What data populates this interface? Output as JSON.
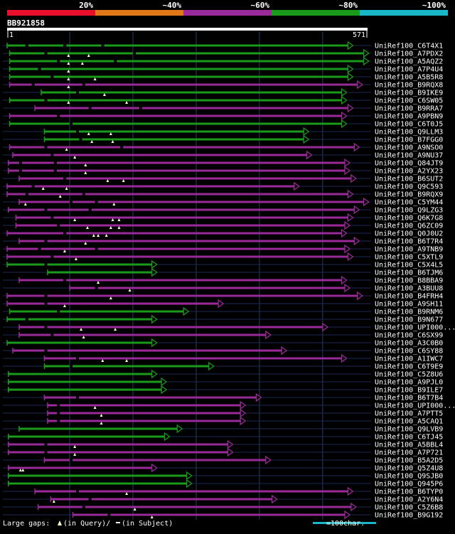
{
  "chart_data": {
    "type": "alignment-overview",
    "query_id": "BB921858",
    "query_length": 571,
    "axis": {
      "start_label": "1",
      "end_label": "571"
    },
    "identity_scale": {
      "labels": [
        "20%",
        "~40%",
        "~60%",
        "~80%",
        "~100%"
      ],
      "colors": [
        "#e8102a",
        "#e07818",
        "#9a2a9a",
        "#1a9a1a",
        "#18b8c8"
      ]
    },
    "gridlines_at": [
      100,
      200,
      300,
      400,
      500
    ],
    "hits": [
      {
        "name": "UniRef100_C6T4X1",
        "start": 1,
        "end": 540,
        "color": "#1a9a1a",
        "query_gaps": [],
        "subject_gaps": [
          30,
          90,
          150
        ]
      },
      {
        "name": "UniRef100_A7PDX2",
        "start": 5,
        "end": 565,
        "color": "#1a9a1a",
        "query_gaps": [
          98,
          130
        ],
        "subject_gaps": [
          60,
          200
        ]
      },
      {
        "name": "UniRef100_A5AQZ2",
        "start": 5,
        "end": 565,
        "color": "#1a9a1a",
        "query_gaps": [
          98,
          120
        ],
        "subject_gaps": [
          80,
          170
        ]
      },
      {
        "name": "UniRef100_A7P4U4",
        "start": 5,
        "end": 540,
        "color": "#1a9a1a",
        "query_gaps": [
          98
        ],
        "subject_gaps": [
          50
        ]
      },
      {
        "name": "UniRef100_A5B5R8",
        "start": 5,
        "end": 540,
        "color": "#1a9a1a",
        "query_gaps": [
          98,
          140
        ],
        "subject_gaps": [
          70
        ]
      },
      {
        "name": "UniRef100_B9RQX8",
        "start": 5,
        "end": 555,
        "color": "#9a2a9a",
        "query_gaps": [
          98
        ],
        "subject_gaps": [
          40,
          120
        ]
      },
      {
        "name": "UniRef100_B9IKE9",
        "start": 55,
        "end": 530,
        "color": "#1a9a1a",
        "query_gaps": [
          155
        ],
        "subject_gaps": [
          110
        ]
      },
      {
        "name": "UniRef100_C6SW05",
        "start": 5,
        "end": 530,
        "color": "#1a9a1a",
        "query_gaps": [
          98,
          190
        ],
        "subject_gaps": [
          60
        ]
      },
      {
        "name": "UniRef100_B9RRA7",
        "start": 45,
        "end": 540,
        "color": "#9a2a9a",
        "query_gaps": [],
        "subject_gaps": [
          130,
          210
        ]
      },
      {
        "name": "UniRef100_A9PBN9",
        "start": 5,
        "end": 530,
        "color": "#9a2a9a",
        "query_gaps": [],
        "subject_gaps": [
          80
        ]
      },
      {
        "name": "UniRef100_C6T0J5",
        "start": 5,
        "end": 530,
        "color": "#1a9a1a",
        "query_gaps": [],
        "subject_gaps": [
          100
        ]
      },
      {
        "name": "UniRef100_Q9LLM3",
        "start": 60,
        "end": 470,
        "color": "#1a9a1a",
        "query_gaps": [
          130,
          165
        ],
        "subject_gaps": [
          110
        ]
      },
      {
        "name": "UniRef100_B7FGG0",
        "start": 60,
        "end": 470,
        "color": "#1a9a1a",
        "query_gaps": [
          135,
          168
        ],
        "subject_gaps": [
          115
        ]
      },
      {
        "name": "UniRef100_A9NSO0",
        "start": 5,
        "end": 550,
        "color": "#9a2a9a",
        "query_gaps": [
          95
        ],
        "subject_gaps": [
          60,
          180
        ]
      },
      {
        "name": "UniRef100_A9NU37",
        "start": 10,
        "end": 475,
        "color": "#9a2a9a",
        "query_gaps": [
          108
        ],
        "subject_gaps": [
          70
        ]
      },
      {
        "name": "UniRef100_Q84JT9",
        "start": 3,
        "end": 535,
        "color": "#9a2a9a",
        "query_gaps": [
          125
        ],
        "subject_gaps": [
          20,
          75
        ]
      },
      {
        "name": "UniRef100_A2YX23",
        "start": 3,
        "end": 535,
        "color": "#9a2a9a",
        "query_gaps": [
          125
        ],
        "subject_gaps": [
          20,
          75
        ]
      },
      {
        "name": "UniRef100_B6SUT2",
        "start": 20,
        "end": 545,
        "color": "#9a2a9a",
        "query_gaps": [
          160,
          185
        ],
        "subject_gaps": [
          90
        ]
      },
      {
        "name": "UniRef100_Q9C593",
        "start": 1,
        "end": 455,
        "color": "#9a2a9a",
        "query_gaps": [
          58,
          95
        ],
        "subject_gaps": [
          40
        ]
      },
      {
        "name": "UniRef100_B9RQX9",
        "start": 1,
        "end": 540,
        "color": "#9a2a9a",
        "query_gaps": [
          85
        ],
        "subject_gaps": [
          30,
          120
        ]
      },
      {
        "name": "UniRef100_C5YM44",
        "start": 20,
        "end": 565,
        "color": "#9a2a9a",
        "query_gaps": [
          30,
          170
        ],
        "subject_gaps": [
          100,
          140
        ]
      },
      {
        "name": "UniRef100_Q9LZG3",
        "start": 3,
        "end": 550,
        "color": "#9a2a9a",
        "query_gaps": [],
        "subject_gaps": [
          60,
          130
        ]
      },
      {
        "name": "UniRef100_Q6K7G8",
        "start": 15,
        "end": 540,
        "color": "#9a2a9a",
        "query_gaps": [
          108,
          168,
          178
        ],
        "subject_gaps": [
          70
        ]
      },
      {
        "name": "UniRef100_Q6ZC09",
        "start": 15,
        "end": 535,
        "color": "#9a2a9a",
        "query_gaps": [
          128,
          165,
          178
        ],
        "subject_gaps": [
          80
        ]
      },
      {
        "name": "UniRef100_Q0J0U2",
        "start": 1,
        "end": 530,
        "color": "#9a2a9a",
        "query_gaps": [
          138,
          145,
          158
        ],
        "subject_gaps": [
          90
        ]
      },
      {
        "name": "UniRef100_B6T7R4",
        "start": 20,
        "end": 550,
        "color": "#9a2a9a",
        "query_gaps": [
          125
        ],
        "subject_gaps": [
          60
        ]
      },
      {
        "name": "UniRef100_A9TNB9",
        "start": 1,
        "end": 535,
        "color": "#9a2a9a",
        "query_gaps": [
          92
        ],
        "subject_gaps": [
          50,
          140
        ]
      },
      {
        "name": "UniRef100_C5XTL9",
        "start": 1,
        "end": 540,
        "color": "#9a2a9a",
        "query_gaps": [
          110
        ],
        "subject_gaps": [
          70
        ]
      },
      {
        "name": "UniRef100_C5X4L5",
        "start": 1,
        "end": 230,
        "color": "#1a9a1a",
        "query_gaps": [],
        "subject_gaps": [
          60
        ]
      },
      {
        "name": "UniRef100_B6TJM6",
        "start": 65,
        "end": 230,
        "color": "#1a9a1a",
        "query_gaps": [],
        "subject_gaps": []
      },
      {
        "name": "UniRef100_B8BBA9",
        "start": 20,
        "end": 530,
        "color": "#9a2a9a",
        "query_gaps": [
          145
        ],
        "subject_gaps": [
          90
        ]
      },
      {
        "name": "UniRef100_A3BUU8",
        "start": 100,
        "end": 535,
        "color": "#9a2a9a",
        "query_gaps": [
          195
        ],
        "subject_gaps": [
          140
        ]
      },
      {
        "name": "UniRef100_B4FRH4",
        "start": 1,
        "end": 555,
        "color": "#9a2a9a",
        "query_gaps": [
          165
        ],
        "subject_gaps": [
          60
        ]
      },
      {
        "name": "UniRef100_A9SH11",
        "start": 1,
        "end": 335,
        "color": "#9a2a9a",
        "query_gaps": [
          92
        ],
        "subject_gaps": [
          60
        ]
      },
      {
        "name": "UniRef100_B9RNM6",
        "start": 5,
        "end": 280,
        "color": "#1a9a1a",
        "query_gaps": [],
        "subject_gaps": [
          80
        ]
      },
      {
        "name": "UniRef100_B9N677",
        "start": 1,
        "end": 230,
        "color": "#1a9a1a",
        "query_gaps": [],
        "subject_gaps": [
          30
        ]
      },
      {
        "name": "UniRef100_UPI000...",
        "start": 20,
        "end": 500,
        "color": "#9a2a9a",
        "query_gaps": [
          118,
          172
        ],
        "subject_gaps": [
          60
        ]
      },
      {
        "name": "UniRef100_C6SX99",
        "start": 20,
        "end": 410,
        "color": "#9a2a9a",
        "query_gaps": [
          122
        ],
        "subject_gaps": [
          70
        ]
      },
      {
        "name": "UniRef100_A3C0B0",
        "start": 1,
        "end": 230,
        "color": "#1a9a1a",
        "query_gaps": [],
        "subject_gaps": []
      },
      {
        "name": "UniRef100_C6SY88",
        "start": 10,
        "end": 435,
        "color": "#9a2a9a",
        "query_gaps": [],
        "subject_gaps": [
          60
        ]
      },
      {
        "name": "UniRef100_A1IWC7",
        "start": 60,
        "end": 530,
        "color": "#9a2a9a",
        "query_gaps": [
          152,
          190
        ],
        "subject_gaps": [
          110
        ]
      },
      {
        "name": "UniRef100_C6T9E9",
        "start": 60,
        "end": 320,
        "color": "#1a9a1a",
        "query_gaps": [],
        "subject_gaps": [
          100
        ]
      },
      {
        "name": "UniRef100_C5Z8U6",
        "start": 3,
        "end": 230,
        "color": "#1a9a1a",
        "query_gaps": [],
        "subject_gaps": []
      },
      {
        "name": "UniRef100_A9PJL0",
        "start": 3,
        "end": 245,
        "color": "#1a9a1a",
        "query_gaps": [],
        "subject_gaps": []
      },
      {
        "name": "UniRef100_B9ILE7",
        "start": 3,
        "end": 245,
        "color": "#1a9a1a",
        "query_gaps": [],
        "subject_gaps": []
      },
      {
        "name": "UniRef100_B6T7B4",
        "start": 60,
        "end": 395,
        "color": "#9a2a9a",
        "query_gaps": [],
        "subject_gaps": [
          110
        ]
      },
      {
        "name": "UniRef100_UPI000...",
        "start": 65,
        "end": 370,
        "color": "#9a2a9a",
        "query_gaps": [
          140
        ],
        "subject_gaps": [
          80
        ]
      },
      {
        "name": "UniRef100_A7PTT5",
        "start": 65,
        "end": 370,
        "color": "#9a2a9a",
        "query_gaps": [
          150
        ],
        "subject_gaps": [
          80
        ]
      },
      {
        "name": "UniRef100_A5CAQ1",
        "start": 65,
        "end": 370,
        "color": "#9a2a9a",
        "query_gaps": [
          150
        ],
        "subject_gaps": [
          80
        ]
      },
      {
        "name": "UniRef100_Q9LVB9",
        "start": 20,
        "end": 270,
        "color": "#1a9a1a",
        "query_gaps": [],
        "subject_gaps": []
      },
      {
        "name": "UniRef100_C6TJ45",
        "start": 3,
        "end": 250,
        "color": "#1a9a1a",
        "query_gaps": [],
        "subject_gaps": []
      },
      {
        "name": "UniRef100_A5BBL4",
        "start": 3,
        "end": 350,
        "color": "#9a2a9a",
        "query_gaps": [
          108
        ],
        "subject_gaps": [
          60
        ]
      },
      {
        "name": "UniRef100_A7P721",
        "start": 3,
        "end": 350,
        "color": "#9a2a9a",
        "query_gaps": [
          108
        ],
        "subject_gaps": [
          60
        ]
      },
      {
        "name": "UniRef100_B5A2D5",
        "start": 60,
        "end": 410,
        "color": "#9a2a9a",
        "query_gaps": [],
        "subject_gaps": [
          100
        ]
      },
      {
        "name": "UniRef100_Q5Z4U8",
        "start": 3,
        "end": 230,
        "color": "#9a2a9a",
        "query_gaps": [
          22,
          26
        ],
        "subject_gaps": []
      },
      {
        "name": "UniRef100_Q9SJB0",
        "start": 3,
        "end": 285,
        "color": "#1a9a1a",
        "query_gaps": [],
        "subject_gaps": []
      },
      {
        "name": "UniRef100_Q945P6",
        "start": 3,
        "end": 285,
        "color": "#1a9a1a",
        "query_gaps": [],
        "subject_gaps": []
      },
      {
        "name": "UniRef100_B6TYP0",
        "start": 45,
        "end": 540,
        "color": "#9a2a9a",
        "query_gaps": [
          190
        ],
        "subject_gaps": [
          110
        ]
      },
      {
        "name": "UniRef100_A2Y6N4",
        "start": 70,
        "end": 420,
        "color": "#9a2a9a",
        "query_gaps": [
          75
        ],
        "subject_gaps": [
          130
        ]
      },
      {
        "name": "UniRef100_C5Z6B8",
        "start": 50,
        "end": 545,
        "color": "#9a2a9a",
        "query_gaps": [
          203
        ],
        "subject_gaps": [
          120
        ]
      },
      {
        "name": "UniRef100_B9G192",
        "start": 105,
        "end": 535,
        "color": "#9a2a9a",
        "query_gaps": [
          230
        ],
        "subject_gaps": [
          160
        ]
      }
    ],
    "legend": {
      "large_gaps_label": "Large gaps: ",
      "query_marker_text": "(in Query)/",
      "subject_marker_text": "(in Subject)",
      "scale_text": "=100char."
    }
  }
}
